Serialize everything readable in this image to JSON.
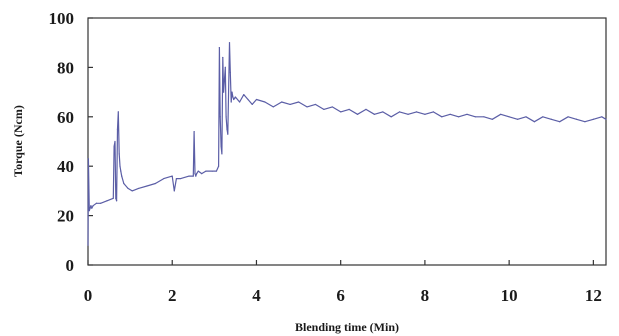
{
  "chart_data": {
    "type": "line",
    "title": "",
    "xlabel": "Blending time (Min)",
    "ylabel": "Torque (Ncm)",
    "xlim": [
      0,
      12.3
    ],
    "ylim": [
      0,
      100
    ],
    "x_ticks": [
      0,
      2,
      4,
      6,
      8,
      10,
      12
    ],
    "y_ticks": [
      0,
      20,
      40,
      60,
      80,
      100
    ],
    "grid": false,
    "line_color": "#5b5ea6",
    "series": [
      {
        "x": [
          0.0,
          0.01,
          0.03,
          0.05,
          0.07,
          0.09,
          0.12,
          0.2,
          0.3,
          0.45,
          0.6,
          0.62,
          0.64,
          0.66,
          0.68,
          0.7,
          0.72,
          0.74,
          0.76,
          0.78,
          0.8,
          0.85,
          0.95,
          1.05,
          1.2,
          1.4,
          1.6,
          1.8,
          2.0,
          2.05,
          2.1,
          2.2,
          2.4,
          2.5,
          2.52,
          2.54,
          2.56,
          2.58,
          2.62,
          2.7,
          2.8,
          2.95,
          3.05,
          3.1,
          3.12,
          3.14,
          3.16,
          3.18,
          3.2,
          3.22,
          3.26,
          3.28,
          3.3,
          3.32,
          3.36,
          3.38,
          3.4,
          3.42,
          3.44,
          3.46,
          3.5,
          3.6,
          3.7,
          3.8,
          3.9,
          4.0,
          4.2,
          4.4,
          4.6,
          4.8,
          5.0,
          5.2,
          5.4,
          5.6,
          5.8,
          6.0,
          6.2,
          6.4,
          6.6,
          6.8,
          7.0,
          7.2,
          7.4,
          7.6,
          7.8,
          8.0,
          8.2,
          8.4,
          8.6,
          8.8,
          9.0,
          9.2,
          9.4,
          9.6,
          9.8,
          10.0,
          10.2,
          10.4,
          10.6,
          10.8,
          11.0,
          11.2,
          11.4,
          11.6,
          11.8,
          12.0,
          12.2,
          12.3
        ],
        "values": [
          8,
          43,
          22,
          23,
          24,
          23,
          24,
          25,
          25,
          26,
          27,
          48,
          50,
          27,
          26,
          55,
          62,
          45,
          40,
          38,
          36,
          33,
          31,
          30,
          31,
          32,
          33,
          35,
          36,
          30,
          35,
          35,
          36,
          36,
          54,
          37,
          36,
          37,
          38,
          37,
          38,
          38,
          38,
          40,
          88,
          60,
          48,
          45,
          84,
          70,
          80,
          60,
          55,
          53,
          90,
          78,
          66,
          70,
          68,
          67,
          68,
          66,
          69,
          67,
          65,
          67,
          66,
          64,
          66,
          65,
          66,
          64,
          65,
          63,
          64,
          62,
          63,
          61,
          63,
          61,
          62,
          60,
          62,
          61,
          62,
          61,
          62,
          60,
          61,
          60,
          61,
          60,
          60,
          59,
          61,
          60,
          59,
          60,
          58,
          60,
          59,
          58,
          60,
          59,
          58,
          59,
          60,
          59
        ]
      }
    ]
  }
}
